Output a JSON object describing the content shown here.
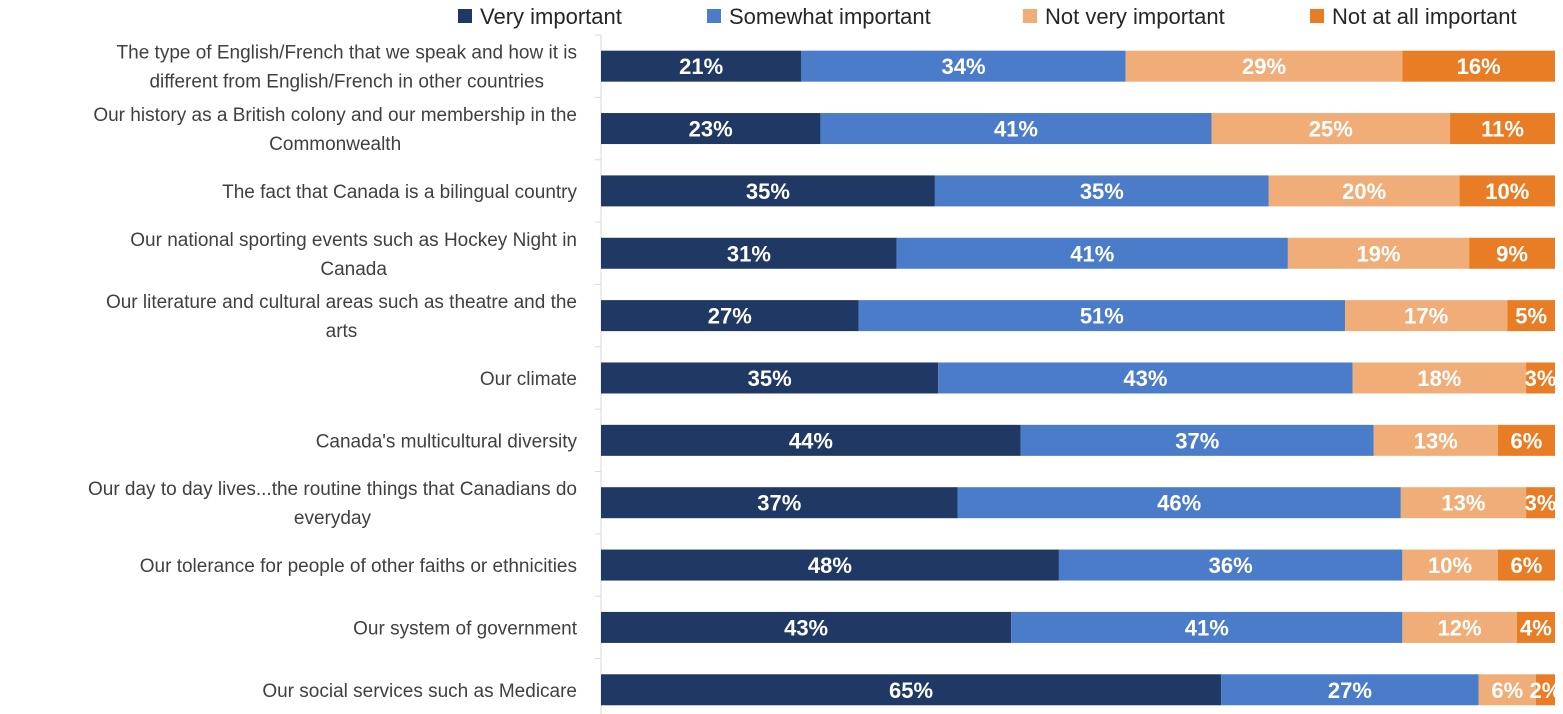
{
  "chart_data": {
    "type": "bar",
    "orientation": "horizontal",
    "stacked": true,
    "normalized": true,
    "title": "",
    "xlabel": "",
    "ylabel": "",
    "grid": false,
    "legend_position": "top",
    "categories": [
      [
        "The type of English/French that we speak and how it is",
        "different from English/French in other countries"
      ],
      [
        "Our history as a British colony and our membership in the",
        "Commonwealth"
      ],
      [
        "The fact that Canada is a bilingual country"
      ],
      [
        "Our national sporting events such as Hockey Night in",
        "Canada"
      ],
      [
        "Our literature and cultural areas such as theatre and the",
        "arts"
      ],
      [
        "Our climate"
      ],
      [
        "Canada's multicultural diversity"
      ],
      [
        "Our day to day lives...the routine things that Canadians do",
        "everyday"
      ],
      [
        "Our tolerance for people of other faiths or ethnicities"
      ],
      [
        "Our system of government"
      ],
      [
        "Our social services such as Medicare"
      ]
    ],
    "series": [
      {
        "name": "Very important",
        "color": "#1f3864",
        "values": [
          21,
          23,
          35,
          31,
          27,
          35,
          44,
          37,
          48,
          43,
          65
        ]
      },
      {
        "name": "Somewhat important",
        "color": "#4a7cc9",
        "values": [
          34,
          41,
          35,
          41,
          51,
          43,
          37,
          46,
          36,
          41,
          27
        ]
      },
      {
        "name": "Not very important",
        "color": "#f0ad78",
        "values": [
          29,
          25,
          20,
          19,
          17,
          18,
          13,
          13,
          10,
          12,
          6
        ]
      },
      {
        "name": "Not at all important",
        "color": "#e87d25",
        "values": [
          16,
          11,
          10,
          9,
          5,
          3,
          6,
          3,
          6,
          4,
          2
        ]
      }
    ],
    "value_suffix": "%"
  }
}
